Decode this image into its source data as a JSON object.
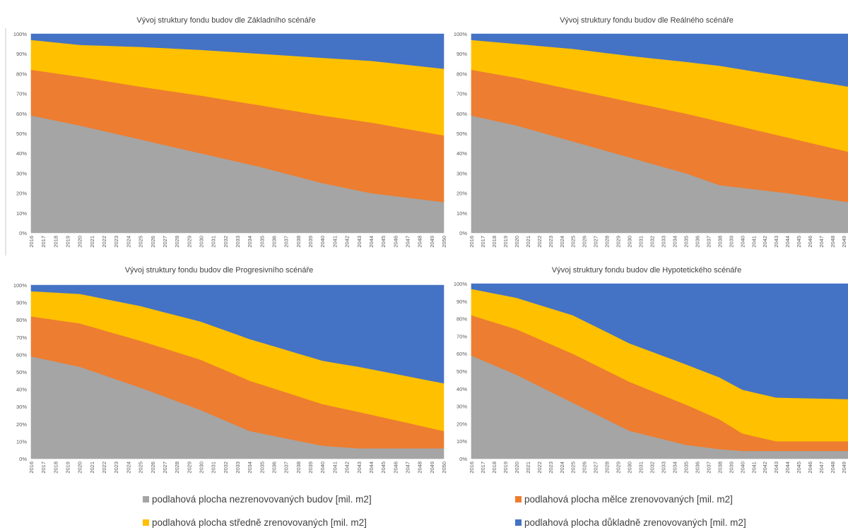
{
  "legend": [
    {
      "label": "podlahová plocha nezrenovovaných budov [mil. m2]",
      "color": "#A5A5A5"
    },
    {
      "label": "podlahová plocha mělce zrenovovaných [mil. m2]",
      "color": "#ED7D31"
    },
    {
      "label": "podlahová plocha středně zrenovovaných [mil. m2]",
      "color": "#FFC000"
    },
    {
      "label": "podlahová plocha důkladně zrenovovaných [mil. m2]",
      "color": "#4472C4"
    }
  ],
  "chart_data": [
    {
      "type": "area",
      "stacking": "percent",
      "title": "Vývoj struktury fondu budov dle Základního scénáře",
      "xlabel": "",
      "ylabel": "",
      "ylim": [
        0,
        100
      ],
      "y_ticks": [
        "0%",
        "10%",
        "20%",
        "30%",
        "40%",
        "50%",
        "60%",
        "70%",
        "80%",
        "90%",
        "100%"
      ],
      "x_start": 2016,
      "x_end": 2050,
      "series": [
        {
          "name": "podlahová plocha nezrenovovaných budov [mil. m2]",
          "color": "#A5A5A5",
          "anchors": [
            [
              2016,
              59
            ],
            [
              2020,
              54
            ],
            [
              2025,
              47
            ],
            [
              2030,
              40
            ],
            [
              2035,
              33
            ],
            [
              2040,
              25
            ],
            [
              2044,
              20
            ],
            [
              2050,
              15.5
            ]
          ]
        },
        {
          "name": "podlahová plocha mělce zrenovovaných [mil. m2]",
          "color": "#ED7D31",
          "anchors": [
            [
              2016,
              23
            ],
            [
              2020,
              24.5
            ],
            [
              2025,
              26.5
            ],
            [
              2030,
              29
            ],
            [
              2035,
              31
            ],
            [
              2040,
              34
            ],
            [
              2044,
              35.5
            ],
            [
              2050,
              33.5
            ]
          ]
        },
        {
          "name": "podlahová plocha středně zrenovovaných [mil. m2]",
          "color": "#FFC000",
          "anchors": [
            [
              2016,
              15
            ],
            [
              2020,
              16
            ],
            [
              2025,
              20
            ],
            [
              2030,
              23
            ],
            [
              2035,
              26
            ],
            [
              2040,
              29
            ],
            [
              2044,
              31
            ],
            [
              2050,
              33.5
            ]
          ]
        },
        {
          "name": "podlahová plocha důkladně zrenovovaných [mil. m2]",
          "color": "#4472C4",
          "anchors": [
            [
              2016,
              3
            ],
            [
              2020,
              5.5
            ],
            [
              2025,
              6.5
            ],
            [
              2030,
              8
            ],
            [
              2035,
              10
            ],
            [
              2040,
              12
            ],
            [
              2044,
              13.5
            ],
            [
              2050,
              17.5
            ]
          ]
        }
      ]
    },
    {
      "type": "area",
      "stacking": "percent",
      "title": "Vývoj struktury fondu budov dle Reálného scénáře",
      "xlabel": "",
      "ylabel": "",
      "ylim": [
        0,
        100
      ],
      "y_ticks": [
        "0%",
        "10%",
        "20%",
        "30%",
        "40%",
        "50%",
        "60%",
        "70%",
        "80%",
        "90%",
        "100%"
      ],
      "x_start": 2016,
      "x_end": 2050,
      "series": [
        {
          "name": "podlahová plocha nezrenovovaných budov [mil. m2]",
          "color": "#A5A5A5",
          "anchors": [
            [
              2016,
              59
            ],
            [
              2020,
              54
            ],
            [
              2025,
              46
            ],
            [
              2030,
              38
            ],
            [
              2035,
              30
            ],
            [
              2038,
              24
            ],
            [
              2044,
              20
            ],
            [
              2050,
              15
            ]
          ]
        },
        {
          "name": "podlahová plocha mělce zrenovovaných [mil. m2]",
          "color": "#ED7D31",
          "anchors": [
            [
              2016,
              23
            ],
            [
              2020,
              24
            ],
            [
              2025,
              26
            ],
            [
              2030,
              28
            ],
            [
              2035,
              30
            ],
            [
              2038,
              32
            ],
            [
              2044,
              28
            ],
            [
              2050,
              25
            ]
          ]
        },
        {
          "name": "podlahová plocha středně zrenovovaných [mil. m2]",
          "color": "#FFC000",
          "anchors": [
            [
              2016,
              15
            ],
            [
              2020,
              17
            ],
            [
              2025,
              20.5
            ],
            [
              2030,
              23
            ],
            [
              2035,
              26
            ],
            [
              2038,
              28
            ],
            [
              2044,
              30.5
            ],
            [
              2050,
              33
            ]
          ]
        },
        {
          "name": "podlahová plocha důkladně zrenovovaných [mil. m2]",
          "color": "#4472C4",
          "anchors": [
            [
              2016,
              3
            ],
            [
              2020,
              5
            ],
            [
              2025,
              7.5
            ],
            [
              2030,
              11
            ],
            [
              2035,
              14
            ],
            [
              2038,
              16
            ],
            [
              2044,
              21.5
            ],
            [
              2050,
              27
            ]
          ]
        }
      ]
    },
    {
      "type": "area",
      "stacking": "percent",
      "title": "Vývoj struktury fondu budov dle Progresivního scénáře",
      "xlabel": "",
      "ylabel": "",
      "ylim": [
        0,
        100
      ],
      "y_ticks": [
        "0%",
        "10%",
        "20%",
        "30%",
        "40%",
        "50%",
        "60%",
        "70%",
        "80%",
        "90%",
        "100%"
      ],
      "x_start": 2016,
      "x_end": 2050,
      "series": [
        {
          "name": "podlahová plocha nezrenovovaných budov [mil. m2]",
          "color": "#A5A5A5",
          "anchors": [
            [
              2016,
              59
            ],
            [
              2020,
              53
            ],
            [
              2025,
              41
            ],
            [
              2030,
              28
            ],
            [
              2034,
              16
            ],
            [
              2040,
              7.5
            ],
            [
              2043,
              6
            ],
            [
              2050,
              6
            ]
          ]
        },
        {
          "name": "podlahová plocha mělce zrenovovaných [mil. m2]",
          "color": "#ED7D31",
          "anchors": [
            [
              2016,
              23
            ],
            [
              2020,
              25
            ],
            [
              2025,
              27
            ],
            [
              2030,
              29
            ],
            [
              2034,
              29
            ],
            [
              2040,
              24
            ],
            [
              2043,
              21
            ],
            [
              2050,
              10
            ]
          ]
        },
        {
          "name": "podlahová plocha středně zrenovovaných [mil. m2]",
          "color": "#FFC000",
          "anchors": [
            [
              2016,
              14.5
            ],
            [
              2020,
              17
            ],
            [
              2025,
              20
            ],
            [
              2030,
              22
            ],
            [
              2034,
              24
            ],
            [
              2040,
              25
            ],
            [
              2043,
              26
            ],
            [
              2050,
              27.5
            ]
          ]
        },
        {
          "name": "podlahová plocha důkladně zrenovovaných [mil. m2]",
          "color": "#4472C4",
          "anchors": [
            [
              2016,
              3.5
            ],
            [
              2020,
              5
            ],
            [
              2025,
              12
            ],
            [
              2030,
              21
            ],
            [
              2034,
              31
            ],
            [
              2040,
              43.5
            ],
            [
              2043,
              47
            ],
            [
              2050,
              56.5
            ]
          ]
        }
      ]
    },
    {
      "type": "area",
      "stacking": "percent",
      "title": "Vývoj struktury fondu budov dle Hypotetického scénáře",
      "xlabel": "",
      "ylabel": "",
      "ylim": [
        0,
        100
      ],
      "y_ticks": [
        "0%",
        "10%",
        "20%",
        "30%",
        "40%",
        "50%",
        "60%",
        "70%",
        "80%",
        "90%",
        "100%"
      ],
      "x_start": 2016,
      "x_end": 2050,
      "series": [
        {
          "name": "podlahová plocha nezrenovovaných budov [mil. m2]",
          "color": "#A5A5A5",
          "anchors": [
            [
              2016,
              59
            ],
            [
              2020,
              48
            ],
            [
              2025,
              32
            ],
            [
              2030,
              16
            ],
            [
              2035,
              8
            ],
            [
              2038,
              5.5
            ],
            [
              2040,
              4.5
            ],
            [
              2050,
              4.5
            ]
          ]
        },
        {
          "name": "podlahová plocha mělce zrenovovaných [mil. m2]",
          "color": "#ED7D31",
          "anchors": [
            [
              2016,
              23
            ],
            [
              2020,
              26
            ],
            [
              2025,
              28
            ],
            [
              2030,
              28
            ],
            [
              2035,
              23
            ],
            [
              2038,
              17
            ],
            [
              2040,
              10
            ],
            [
              2043,
              5.5
            ],
            [
              2050,
              5.5
            ]
          ]
        },
        {
          "name": "podlahová plocha středně zrenovovaných [mil. m2]",
          "color": "#FFC000",
          "anchors": [
            [
              2016,
              15
            ],
            [
              2020,
              18
            ],
            [
              2025,
              22
            ],
            [
              2030,
              22
            ],
            [
              2035,
              23
            ],
            [
              2038,
              24
            ],
            [
              2040,
              25
            ],
            [
              2043,
              25
            ],
            [
              2050,
              24
            ]
          ]
        },
        {
          "name": "podlahová plocha důkladně zrenovovaných [mil. m2]",
          "color": "#4472C4",
          "anchors": [
            [
              2016,
              3
            ],
            [
              2020,
              8
            ],
            [
              2025,
              18
            ],
            [
              2030,
              34
            ],
            [
              2035,
              46
            ],
            [
              2038,
              53.5
            ],
            [
              2040,
              60.5
            ],
            [
              2043,
              65
            ],
            [
              2050,
              66
            ]
          ]
        }
      ]
    }
  ]
}
